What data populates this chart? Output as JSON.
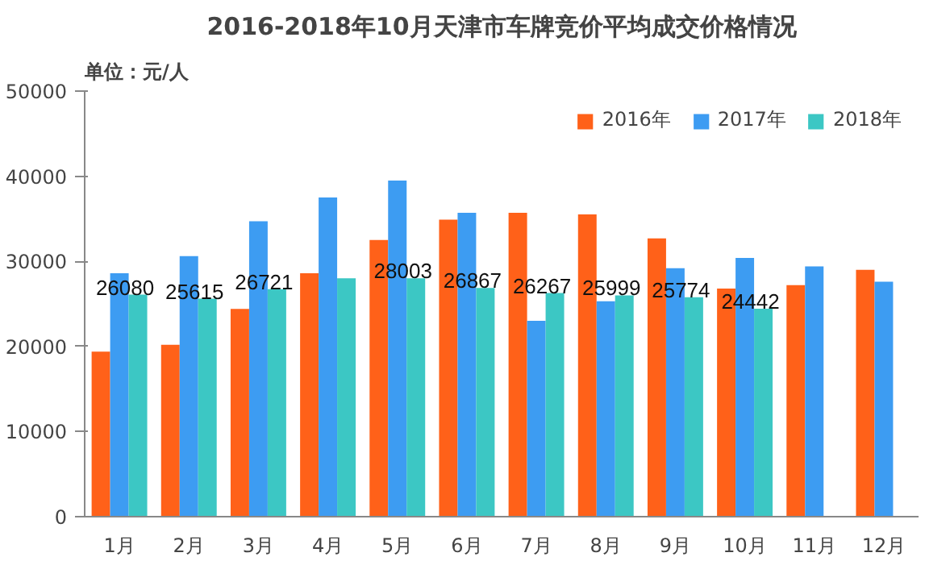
{
  "chart_data": {
    "type": "bar",
    "title": "2016-2018年10月天津市车牌竞价平均成交价格情况",
    "ylabel": "单位：元/人",
    "categories": [
      "1月",
      "2月",
      "3月",
      "4月",
      "5月",
      "6月",
      "7月",
      "8月",
      "9月",
      "10月",
      "11月",
      "12月"
    ],
    "series": [
      {
        "name": "2016年",
        "color": "#ff6119",
        "values": [
          19400,
          20200,
          24400,
          28600,
          32500,
          34900,
          35700,
          35500,
          32700,
          26800,
          27200,
          29000
        ]
      },
      {
        "name": "2017年",
        "color": "#3d9cf2",
        "values": [
          28600,
          30600,
          34700,
          37500,
          39500,
          35700,
          23000,
          25300,
          29200,
          30400,
          29400,
          27600
        ]
      },
      {
        "name": "2018年",
        "color": "#3cc7c4",
        "values": [
          26080,
          25615,
          26721,
          28000,
          28003,
          26867,
          26267,
          25999,
          25774,
          24442,
          null,
          null
        ],
        "value_labels": [
          "26080",
          "25615",
          "26721",
          null,
          "28003",
          "26867",
          "26267",
          "25999",
          "25774",
          "24442",
          null,
          null
        ]
      }
    ],
    "ylim": [
      0,
      50000
    ],
    "yticks": [
      0,
      10000,
      20000,
      30000,
      40000,
      50000
    ],
    "grid": false,
    "legend": "top right"
  }
}
